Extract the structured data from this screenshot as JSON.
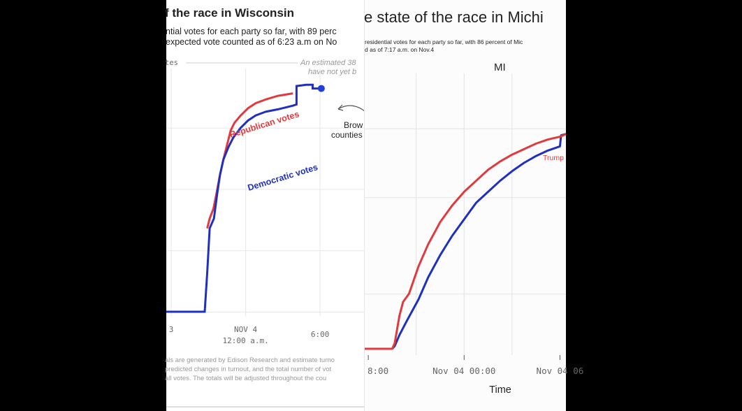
{
  "chart_data": [
    {
      "type": "line",
      "state": "Wisconsin",
      "title": "f the race in Wisconsin",
      "subtitle_lines": [
        "ntial votes for each party so far, with 89 perc",
        "expected vote counted as of 6:23 a.m on No"
      ],
      "ylabel": "tes",
      "annotation_estimate": [
        "An estimated 38",
        "have not yet b"
      ],
      "annotation_counties": [
        "Brow",
        "counties"
      ],
      "x_ticks": [
        {
          "x": 0,
          "line1": "3",
          "line2": ""
        },
        {
          "x": 3,
          "line1": "NOV 4",
          "line2": "12:00 a.m."
        },
        {
          "x": 6,
          "line1": "6:00",
          "line2": ""
        }
      ],
      "xlim": [
        -0.2,
        7.8
      ],
      "ylim": [
        0,
        100
      ],
      "series": [
        {
          "name": "Republican votes",
          "color": "#e03a3e",
          "points": [
            [
              1.45,
              34
            ],
            [
              1.55,
              38
            ],
            [
              1.7,
              42
            ],
            [
              1.82,
              48
            ],
            [
              1.95,
              55
            ],
            [
              2.1,
              62
            ],
            [
              2.25,
              68
            ],
            [
              2.4,
              74
            ],
            [
              2.55,
              77
            ],
            [
              2.8,
              80
            ],
            [
              3.1,
              83
            ],
            [
              3.4,
              85
            ],
            [
              3.8,
              86.5
            ],
            [
              4.3,
              88
            ],
            [
              4.9,
              89
            ]
          ]
        },
        {
          "name": "Democratic votes",
          "color": "#1f2fbf",
          "points": [
            [
              -0.2,
              0
            ],
            [
              1.35,
              0
            ],
            [
              1.45,
              16
            ],
            [
              1.55,
              34
            ],
            [
              1.72,
              38
            ],
            [
              1.85,
              48
            ],
            [
              1.97,
              56
            ],
            [
              2.1,
              62
            ],
            [
              2.3,
              67
            ],
            [
              2.5,
              71
            ],
            [
              2.8,
              75
            ],
            [
              3.1,
              78
            ],
            [
              3.4,
              80
            ],
            [
              3.8,
              81.5
            ],
            [
              4.3,
              82.5
            ],
            [
              4.9,
              84
            ],
            [
              5.05,
              84.5
            ],
            [
              5.05,
              92
            ],
            [
              5.45,
              92.5
            ],
            [
              5.7,
              92.5
            ],
            [
              5.7,
              91
            ],
            [
              6.05,
              91
            ]
          ]
        }
      ],
      "end_point": {
        "x": 6.05,
        "y": 91,
        "color": "#1f3fd6"
      },
      "footnote_lines": [
        "als are generated by Edison Research and estimate turno",
        "predicted changes in turnout, and the total number of vot",
        " all votes. The totals will be adjusted throughout the cou"
      ]
    },
    {
      "type": "line",
      "state": "Michigan",
      "title": "e state of the race in Michi",
      "subtitle_lines": [
        "residential votes for each party so far, with 86 percent of Mic",
        "d as of 7:17 a.m. on Nov.4"
      ],
      "panel_label": "MI",
      "xlabel": "Time",
      "x_ticks": [
        {
          "x": 0,
          "label": "8:00"
        },
        {
          "x": 4,
          "label": "Nov 04 00:00"
        },
        {
          "x": 8,
          "label": "Nov 04 06"
        }
      ],
      "xlim": [
        -0.15,
        8.25
      ],
      "ylim": [
        0,
        100
      ],
      "series": [
        {
          "name": "Trump",
          "color": "#e03a3e",
          "points": [
            [
              -0.15,
              0
            ],
            [
              1.0,
              0
            ],
            [
              1.1,
              2
            ],
            [
              1.3,
              12
            ],
            [
              1.45,
              17
            ],
            [
              1.7,
              20
            ],
            [
              2.1,
              30
            ],
            [
              2.5,
              38
            ],
            [
              3.0,
              46
            ],
            [
              3.5,
              52
            ],
            [
              4.0,
              57
            ],
            [
              4.5,
              61
            ],
            [
              5.0,
              65
            ],
            [
              5.5,
              68
            ],
            [
              6.0,
              70.5
            ],
            [
              6.5,
              72.5
            ],
            [
              7.0,
              74.5
            ],
            [
              7.5,
              76
            ],
            [
              8.0,
              77
            ],
            [
              8.25,
              78
            ]
          ]
        },
        {
          "name": "",
          "color": "#1f2fbf",
          "points": [
            [
              -0.15,
              0
            ],
            [
              1.0,
              0
            ],
            [
              1.1,
              1
            ],
            [
              1.3,
              5
            ],
            [
              1.6,
              10
            ],
            [
              2.1,
              18
            ],
            [
              2.5,
              26
            ],
            [
              3.0,
              34
            ],
            [
              3.5,
              41
            ],
            [
              4.0,
              47
            ],
            [
              4.5,
              53
            ],
            [
              5.0,
              57
            ],
            [
              5.5,
              61
            ],
            [
              6.0,
              64.5
            ],
            [
              6.5,
              67.5
            ],
            [
              7.0,
              70
            ],
            [
              7.5,
              72
            ],
            [
              8.0,
              73.5
            ],
            [
              8.05,
              77.5
            ],
            [
              8.25,
              78
            ]
          ]
        }
      ]
    }
  ]
}
